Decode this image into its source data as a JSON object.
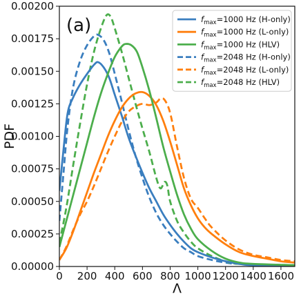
{
  "chart_data": {
    "type": "line",
    "panel_label": "(a)",
    "xlabel": "Λ",
    "ylabel": "PDF",
    "xlim": [
      0,
      1700
    ],
    "ylim": [
      0,
      0.002
    ],
    "xticks": [
      0,
      200,
      400,
      600,
      800,
      1000,
      1200,
      1400,
      1600
    ],
    "xtick_labels": [
      "0",
      "200",
      "400",
      "600",
      "800",
      "1000",
      "1200",
      "1400",
      "1600"
    ],
    "yticks": [
      0,
      0.00025,
      0.0005,
      0.00075,
      0.001,
      0.00125,
      0.0015,
      0.00175,
      0.002
    ],
    "ytick_labels": [
      "0.00000",
      "0.00025",
      "0.00050",
      "0.00075",
      "0.00100",
      "0.00125",
      "0.00150",
      "0.00175",
      "0.00200"
    ],
    "grid": false,
    "legend_position": "top-right",
    "series": [
      {
        "legend_sub": "max",
        "legend_rest": "=1000 Hz (H-only)",
        "color": "#3a7ebf",
        "dashed": false,
        "points": [
          [
            0,
            0.00058
          ],
          [
            30,
            0.0009
          ],
          [
            60,
            0.00118
          ],
          [
            100,
            0.0013
          ],
          [
            150,
            0.0014
          ],
          [
            200,
            0.00148
          ],
          [
            250,
            0.00155
          ],
          [
            280,
            0.00157
          ],
          [
            320,
            0.00153
          ],
          [
            360,
            0.00145
          ],
          [
            400,
            0.00132
          ],
          [
            450,
            0.00116
          ],
          [
            500,
            0.00099
          ],
          [
            550,
            0.00085
          ],
          [
            600,
            0.00072
          ],
          [
            650,
            0.0006
          ],
          [
            700,
            0.0005
          ],
          [
            750,
            0.0004
          ],
          [
            800,
            0.00032
          ],
          [
            850,
            0.00025
          ],
          [
            900,
            0.00019
          ],
          [
            950,
            0.00014
          ],
          [
            1000,
            0.00011
          ],
          [
            1100,
            7e-05
          ],
          [
            1200,
            4e-05
          ],
          [
            1300,
            2e-05
          ],
          [
            1400,
            1e-05
          ],
          [
            1700,
            1e-05
          ]
        ]
      },
      {
        "legend_sub": "max",
        "legend_rest": "=1000 Hz (L-only)",
        "color": "#ff7f0e",
        "dashed": false,
        "points": [
          [
            0,
            5e-05
          ],
          [
            50,
            0.00014
          ],
          [
            100,
            0.00027
          ],
          [
            150,
            0.00042
          ],
          [
            200,
            0.00057
          ],
          [
            250,
            0.00072
          ],
          [
            300,
            0.00086
          ],
          [
            350,
            0.001
          ],
          [
            400,
            0.00112
          ],
          [
            450,
            0.00122
          ],
          [
            500,
            0.00129
          ],
          [
            550,
            0.00133
          ],
          [
            600,
            0.00134
          ],
          [
            650,
            0.00131
          ],
          [
            700,
            0.00124
          ],
          [
            750,
            0.00112
          ],
          [
            800,
            0.00096
          ],
          [
            850,
            0.00078
          ],
          [
            900,
            0.0006
          ],
          [
            950,
            0.00047
          ],
          [
            1000,
            0.00037
          ],
          [
            1050,
            0.0003
          ],
          [
            1100,
            0.00025
          ],
          [
            1200,
            0.00017
          ],
          [
            1300,
            0.00011
          ],
          [
            1400,
            8e-05
          ],
          [
            1500,
            6e-05
          ],
          [
            1600,
            4e-05
          ],
          [
            1700,
            3e-05
          ]
        ]
      },
      {
        "legend_sub": "max",
        "legend_rest": "=1000 Hz (HLV)",
        "color": "#4cae4c",
        "dashed": false,
        "points": [
          [
            0,
            0.00015
          ],
          [
            50,
            0.00035
          ],
          [
            100,
            0.00055
          ],
          [
            150,
            0.00075
          ],
          [
            200,
            0.00095
          ],
          [
            250,
            0.00115
          ],
          [
            300,
            0.00133
          ],
          [
            350,
            0.00148
          ],
          [
            400,
            0.00161
          ],
          [
            450,
            0.00169
          ],
          [
            480,
            0.00171
          ],
          [
            520,
            0.0017
          ],
          [
            560,
            0.00165
          ],
          [
            600,
            0.00153
          ],
          [
            650,
            0.00135
          ],
          [
            700,
            0.00114
          ],
          [
            750,
            0.00092
          ],
          [
            800,
            0.00073
          ],
          [
            850,
            0.00055
          ],
          [
            900,
            0.0004
          ],
          [
            950,
            0.00029
          ],
          [
            1000,
            0.00021
          ],
          [
            1100,
            0.00012
          ],
          [
            1200,
            6e-05
          ],
          [
            1300,
            3e-05
          ],
          [
            1400,
            2e-05
          ],
          [
            1700,
            1e-05
          ]
        ]
      },
      {
        "legend_sub": "max",
        "legend_rest": "=2048 Hz (H-only)",
        "color": "#3a7ebf",
        "dashed": true,
        "points": [
          [
            0,
            0.00035
          ],
          [
            30,
            0.00072
          ],
          [
            60,
            0.00108
          ],
          [
            100,
            0.00138
          ],
          [
            150,
            0.00158
          ],
          [
            200,
            0.0017
          ],
          [
            250,
            0.00177
          ],
          [
            280,
            0.00178
          ],
          [
            320,
            0.00174
          ],
          [
            360,
            0.00164
          ],
          [
            400,
            0.00148
          ],
          [
            450,
            0.00127
          ],
          [
            500,
            0.00105
          ],
          [
            550,
            0.00085
          ],
          [
            600,
            0.00068
          ],
          [
            650,
            0.00053
          ],
          [
            700,
            0.00041
          ],
          [
            750,
            0.00032
          ],
          [
            800,
            0.00025
          ],
          [
            850,
            0.00019
          ],
          [
            900,
            0.00014
          ],
          [
            950,
            0.00011
          ],
          [
            1000,
            8e-05
          ],
          [
            1100,
            5e-05
          ],
          [
            1200,
            3e-05
          ],
          [
            1300,
            2e-05
          ],
          [
            1700,
            1e-05
          ]
        ]
      },
      {
        "legend_sub": "max",
        "legend_rest": "=2048 Hz (L-only)",
        "color": "#ff7f0e",
        "dashed": true,
        "points": [
          [
            0,
            5e-05
          ],
          [
            50,
            0.00015
          ],
          [
            100,
            0.00028
          ],
          [
            150,
            0.0004
          ],
          [
            200,
            0.0005
          ],
          [
            250,
            0.00062
          ],
          [
            300,
            0.00075
          ],
          [
            350,
            0.00088
          ],
          [
            400,
            0.001
          ],
          [
            450,
            0.00111
          ],
          [
            500,
            0.00119
          ],
          [
            550,
            0.00123
          ],
          [
            600,
            0.00125
          ],
          [
            650,
            0.00124
          ],
          [
            700,
            0.00126
          ],
          [
            730,
            0.00129
          ],
          [
            760,
            0.00128
          ],
          [
            800,
            0.00118
          ],
          [
            850,
            0.00092
          ],
          [
            900,
            0.00068
          ],
          [
            950,
            0.00052
          ],
          [
            1000,
            0.00045
          ],
          [
            1050,
            0.00037
          ],
          [
            1100,
            0.0003
          ],
          [
            1200,
            0.0002
          ],
          [
            1300,
            0.00013
          ],
          [
            1400,
            9e-05
          ],
          [
            1500,
            7e-05
          ],
          [
            1600,
            5e-05
          ],
          [
            1700,
            4e-05
          ]
        ]
      },
      {
        "legend_sub": "max",
        "legend_rest": "=2048 Hz (HLV)",
        "color": "#4cae4c",
        "dashed": true,
        "points": [
          [
            0,
            0.00018
          ],
          [
            50,
            0.00045
          ],
          [
            100,
            0.00078
          ],
          [
            150,
            0.0011
          ],
          [
            200,
            0.0014
          ],
          [
            250,
            0.00165
          ],
          [
            300,
            0.00183
          ],
          [
            340,
            0.00193
          ],
          [
            370,
            0.00192
          ],
          [
            400,
            0.00183
          ],
          [
            450,
            0.00165
          ],
          [
            500,
            0.00145
          ],
          [
            550,
            0.00125
          ],
          [
            600,
            0.00106
          ],
          [
            650,
            0.00088
          ],
          [
            700,
            0.00068
          ],
          [
            730,
            0.0006
          ],
          [
            760,
            0.00065
          ],
          [
            780,
            0.00062
          ],
          [
            800,
            0.0005
          ],
          [
            850,
            0.00035
          ],
          [
            900,
            0.00026
          ],
          [
            950,
            0.00019
          ],
          [
            1000,
            0.00014
          ],
          [
            1100,
            8e-05
          ],
          [
            1200,
            4e-05
          ],
          [
            1300,
            2e-05
          ],
          [
            1700,
            1e-05
          ]
        ]
      }
    ]
  }
}
